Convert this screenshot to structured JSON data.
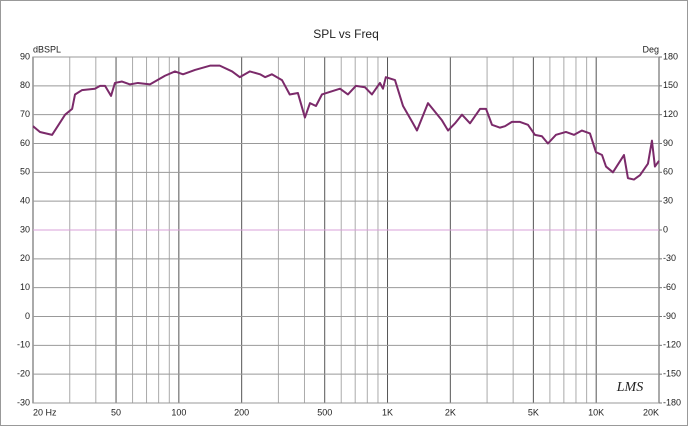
{
  "chart_data": {
    "type": "line",
    "title": "SPL vs Freq",
    "y_label": "dBSPL",
    "y2_label": "Deg",
    "watermark": "LMS",
    "xscale": "log",
    "xlim": [
      20,
      20000
    ],
    "xticks": [
      {
        "value": 20,
        "label": "20 Hz"
      },
      50,
      100,
      200,
      500,
      {
        "value": 1000,
        "label": "1K"
      },
      {
        "value": 2000,
        "label": "2K"
      },
      {
        "value": 5000,
        "label": "5K"
      },
      {
        "value": 10000,
        "label": "10K"
      },
      {
        "value": 20000,
        "label": "20K"
      }
    ],
    "xminorticks": [
      30,
      40,
      60,
      70,
      80,
      90,
      300,
      400,
      600,
      700,
      800,
      900,
      3000,
      4000,
      6000,
      7000,
      8000,
      9000
    ],
    "ylim": [
      -30,
      90
    ],
    "yticks": [
      90,
      80,
      70,
      60,
      50,
      40,
      30,
      20,
      10,
      0,
      -10,
      -20,
      -30
    ],
    "y2lim": [
      -180,
      180
    ],
    "y2ticks": [
      180,
      150,
      120,
      90,
      60,
      30,
      0,
      -30,
      -60,
      -90,
      -120,
      -150,
      -180
    ],
    "grid": true,
    "series": [
      {
        "color": "#7b2a6a",
        "x": [
          20,
          21.6,
          24.7,
          28.5,
          30.8,
          31.8,
          34.3,
          39.6,
          41.9,
          44.3,
          47.3,
          49.4,
          53.4,
          58.3,
          63.7,
          72.7,
          85.8,
          95.8,
          104.7,
          119.5,
          141,
          157,
          180,
          196,
          219,
          245,
          259,
          279,
          312,
          340,
          372,
          402,
          425,
          454,
          485,
          592,
          646,
          706,
          780,
          842,
          920,
          951,
          982,
          1086,
          1187,
          1325,
          1384,
          1563,
          1824,
          1950,
          2106,
          2275,
          2485,
          2775,
          2966,
          3166,
          3460,
          3657,
          3946,
          4313,
          4711,
          5085,
          5494,
          5873,
          6416,
          7163,
          7821,
          8546,
          9336,
          9976,
          10667,
          11145,
          12027,
          13588,
          14194,
          15170,
          16218,
          17704,
          18502,
          19117,
          20000
        ],
        "values": [
          66,
          64,
          63,
          70,
          72,
          77,
          78.5,
          79,
          80,
          80,
          76.5,
          81,
          81.5,
          80.5,
          81,
          80.5,
          83.5,
          85,
          84,
          85.5,
          87,
          87,
          85,
          83,
          85,
          84,
          83,
          84,
          82,
          77,
          77.5,
          69,
          74,
          73,
          77,
          79,
          77,
          80,
          79.5,
          77,
          81,
          79,
          83,
          82,
          73,
          67,
          64.5,
          74,
          68,
          64.5,
          67,
          70,
          67,
          72,
          72,
          66.5,
          65.5,
          66,
          67.5,
          67.5,
          66.5,
          63,
          62.5,
          60,
          63,
          64,
          63,
          64.5,
          63.5,
          57,
          56,
          52,
          50,
          56,
          48,
          47.5,
          49,
          53,
          61,
          52,
          54
        ]
      },
      {
        "color": "#d9a0d9",
        "axis": "y2",
        "x": [
          20,
          20000
        ],
        "values": [
          0,
          0
        ]
      }
    ]
  }
}
